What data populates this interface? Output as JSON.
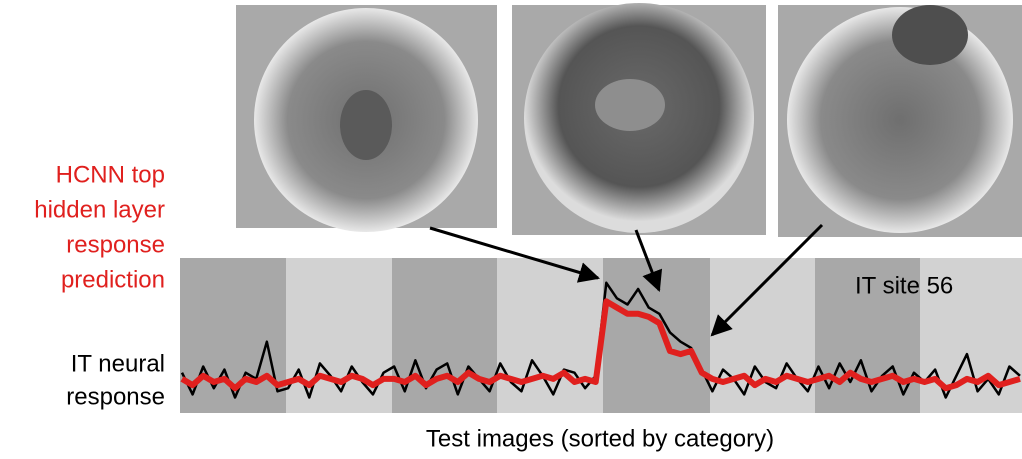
{
  "chart_data": {
    "type": "line",
    "title": "IT site 56",
    "x_label": "Test images (sorted by category)",
    "x": [
      0,
      1,
      2,
      3,
      4,
      5,
      6,
      7,
      8,
      9,
      10,
      11,
      12,
      13,
      14,
      15,
      16,
      17,
      18,
      19,
      20,
      21,
      22,
      23,
      24,
      25,
      26,
      27,
      28,
      29,
      30,
      31,
      32,
      33,
      34,
      35,
      36,
      37,
      38,
      39,
      40,
      41,
      42,
      43,
      44,
      45,
      46,
      47,
      48,
      49,
      50,
      51,
      52,
      53,
      54,
      55,
      56,
      57,
      58,
      59,
      60,
      61,
      62,
      63,
      64,
      65,
      66,
      67,
      68,
      69,
      70,
      71,
      72,
      73,
      74,
      75,
      76,
      77,
      78,
      79
    ],
    "xlim": [
      0,
      79
    ],
    "ylim": [
      -1,
      4
    ],
    "series": [
      {
        "name": [
          "IT neural",
          "response"
        ],
        "color": "#000000",
        "values": [
          0.3,
          -0.4,
          0.5,
          -0.2,
          0.4,
          -0.5,
          0.3,
          0.1,
          1.3,
          -0.3,
          -0.2,
          0.4,
          -0.5,
          0.6,
          0.2,
          -0.3,
          0.5,
          0.0,
          -0.4,
          0.3,
          0.5,
          -0.3,
          0.7,
          -0.2,
          0.4,
          0.6,
          -0.4,
          0.5,
          0.1,
          -0.3,
          0.6,
          0.0,
          -0.3,
          0.7,
          0.2,
          -0.4,
          0.4,
          0.3,
          -0.2,
          0.2,
          3.2,
          2.7,
          2.5,
          3.0,
          2.4,
          2.2,
          1.6,
          1.3,
          1.1,
          0.4,
          -0.3,
          0.4,
          0.1,
          -0.4,
          0.5,
          0.0,
          -0.2,
          0.6,
          0.1,
          -0.3,
          0.5,
          -0.2,
          0.6,
          0.0,
          0.7,
          -0.3,
          0.2,
          0.5,
          -0.4,
          0.3,
          0.0,
          0.4,
          -0.5,
          0.2,
          0.9,
          -0.3,
          0.1,
          -0.4,
          0.5,
          0.2
        ]
      },
      {
        "name": [
          "HCNN top",
          "hidden layer",
          "response",
          "prediction"
        ],
        "color": "#e0201e",
        "values": [
          0.1,
          -0.1,
          0.2,
          0.0,
          0.1,
          -0.2,
          0.1,
          0.0,
          0.2,
          -0.1,
          0.0,
          0.1,
          -0.1,
          0.2,
          0.1,
          0.0,
          0.2,
          0.1,
          -0.1,
          0.1,
          0.1,
          0.0,
          0.2,
          -0.1,
          0.1,
          0.2,
          0.0,
          0.3,
          0.1,
          0.0,
          0.2,
          0.1,
          0.0,
          0.1,
          0.2,
          0.1,
          0.3,
          0.0,
          0.1,
          0.0,
          2.6,
          2.4,
          2.2,
          2.2,
          2.1,
          1.9,
          1.0,
          0.9,
          1.0,
          0.3,
          0.1,
          0.0,
          0.1,
          0.2,
          -0.1,
          0.1,
          0.0,
          0.2,
          0.1,
          0.0,
          0.1,
          0.2,
          0.0,
          0.3,
          0.1,
          0.0,
          0.1,
          0.2,
          0.0,
          0.1,
          0.0,
          0.1,
          -0.2,
          -0.1,
          0.1,
          0.0,
          0.2,
          -0.1,
          0.0,
          0.1
        ]
      }
    ]
  }
}
